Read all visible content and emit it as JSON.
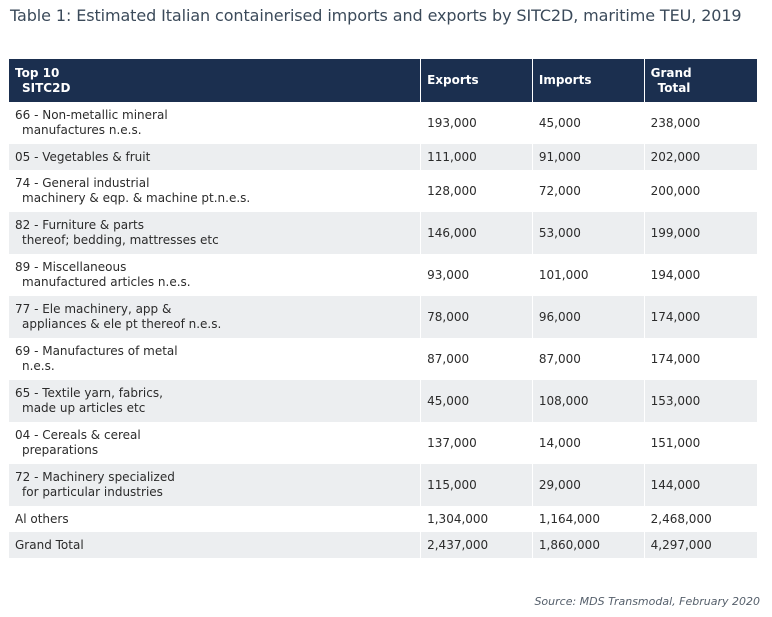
{
  "title": "Table 1: Estimated Italian containerised imports and exports by SITC2D, maritime TEU, 2019",
  "headers": {
    "category_line1": "Top 10",
    "category_line2": "SITC2D",
    "exports": "Exports",
    "imports": "Imports",
    "total_line1": "Grand",
    "total_line2": "Total"
  },
  "rows": [
    {
      "line1": "66 - Non-metallic mineral",
      "line2": "manufactures n.e.s.",
      "exports": "193,000",
      "imports": "45,000",
      "total": "238,000"
    },
    {
      "line1": "05 - Vegetables & fruit",
      "line2": "",
      "exports": "111,000",
      "imports": "91,000",
      "total": "202,000"
    },
    {
      "line1": "74 - General industrial",
      "line2": "machinery & eqp. & machine pt.n.e.s.",
      "exports": "128,000",
      "imports": "72,000",
      "total": "200,000"
    },
    {
      "line1": "82 - Furniture & parts",
      "line2": "thereof; bedding, mattresses etc",
      "exports": "146,000",
      "imports": "53,000",
      "total": "199,000"
    },
    {
      "line1": "89 - Miscellaneous",
      "line2": "manufactured articles n.e.s.",
      "exports": "93,000",
      "imports": "101,000",
      "total": "194,000"
    },
    {
      "line1": "77 - Ele machinery, app &",
      "line2": "appliances & ele pt thereof n.e.s.",
      "exports": "78,000",
      "imports": "96,000",
      "total": "174,000"
    },
    {
      "line1": "69 - Manufactures of metal",
      "line2": "n.e.s.",
      "exports": "87,000",
      "imports": "87,000",
      "total": "174,000"
    },
    {
      "line1": "65 - Textile yarn, fabrics,",
      "line2": "made up articles etc",
      "exports": "45,000",
      "imports": "108,000",
      "total": "153,000"
    },
    {
      "line1": "04 - Cereals & cereal",
      "line2": "preparations",
      "exports": "137,000",
      "imports": "14,000",
      "total": "151,000"
    },
    {
      "line1": "72 - Machinery specialized",
      "line2": "for particular industries",
      "exports": "115,000",
      "imports": "29,000",
      "total": "144,000"
    },
    {
      "line1": "Al others",
      "line2": "",
      "exports": "1,304,000",
      "imports": "1,164,000",
      "total": "2,468,000"
    },
    {
      "line1": "Grand Total",
      "line2": "",
      "exports": "2,437,000",
      "imports": "1,860,000",
      "total": "4,297,000"
    }
  ],
  "source": "Source: MDS Transmodal, February 2020",
  "colors": {
    "header_bg": "#1b2f4f",
    "shaded_row_bg": "#eceef0"
  }
}
